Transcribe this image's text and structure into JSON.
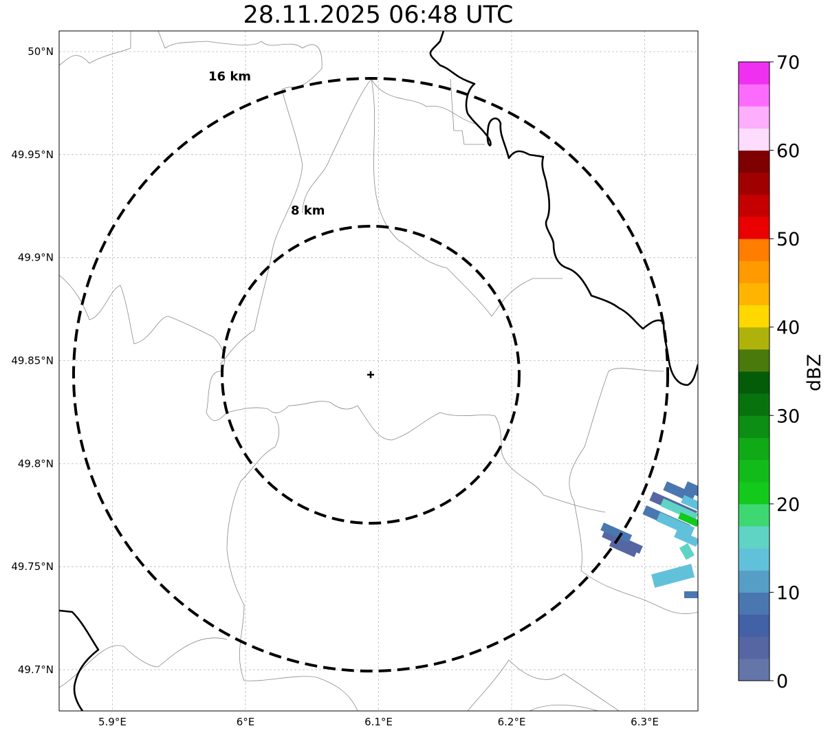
{
  "title": "28.11.2025 06:48 UTC",
  "map": {
    "lon_range": [
      5.86,
      6.34
    ],
    "lat_range": [
      49.68,
      50.01
    ],
    "gridlines": true,
    "lon_ticks": [
      {
        "value": 5.9,
        "label": "5.9°E"
      },
      {
        "value": 6.0,
        "label": "6°E"
      },
      {
        "value": 6.1,
        "label": "6.1°E"
      },
      {
        "value": 6.2,
        "label": "6.2°E"
      },
      {
        "value": 6.3,
        "label": "6.3°E"
      }
    ],
    "lat_ticks": [
      {
        "value": 50.0,
        "label": "50°N"
      },
      {
        "value": 49.95,
        "label": "49.95°N"
      },
      {
        "value": 49.9,
        "label": "49.9°N"
      },
      {
        "value": 49.85,
        "label": "49.85°N"
      },
      {
        "value": 49.8,
        "label": "49.8°N"
      },
      {
        "value": 49.75,
        "label": "49.75°N"
      },
      {
        "value": 49.7,
        "label": "49.7°N"
      }
    ],
    "radar_site": {
      "lon": 6.095,
      "lat": 49.843
    },
    "range_rings": [
      {
        "label": "8 km",
        "radius_km": 8
      },
      {
        "label": "16 km",
        "radius_km": 16
      }
    ]
  },
  "colorbar": {
    "label": "dBZ",
    "ticks": [
      "0",
      "10",
      "20",
      "30",
      "40",
      "50",
      "60",
      "70"
    ],
    "min": 0,
    "max": 70,
    "step": 2.5,
    "colors": [
      "#6476a8",
      "#5566a2",
      "#4361a6",
      "#4a77b0",
      "#579ec6",
      "#62c1da",
      "#5fd4c4",
      "#3dd872",
      "#13c91c",
      "#12bb1a",
      "#0faa16",
      "#0c8d13",
      "#08730d",
      "#045c08",
      "#4a7a0b",
      "#afb20b",
      "#ffd800",
      "#ffb500",
      "#ff9a00",
      "#ff7d00",
      "#ea0000",
      "#c40000",
      "#a10000",
      "#7e0000",
      "#fedcfe",
      "#fdaefd",
      "#fd6bfd",
      "#f030f0"
    ]
  },
  "echo_colors": {
    "weak": "#5566a2",
    "light": "#4a77b0",
    "moderate": "#62c1da",
    "teal": "#5fd4c4",
    "green": "#13c91c"
  }
}
